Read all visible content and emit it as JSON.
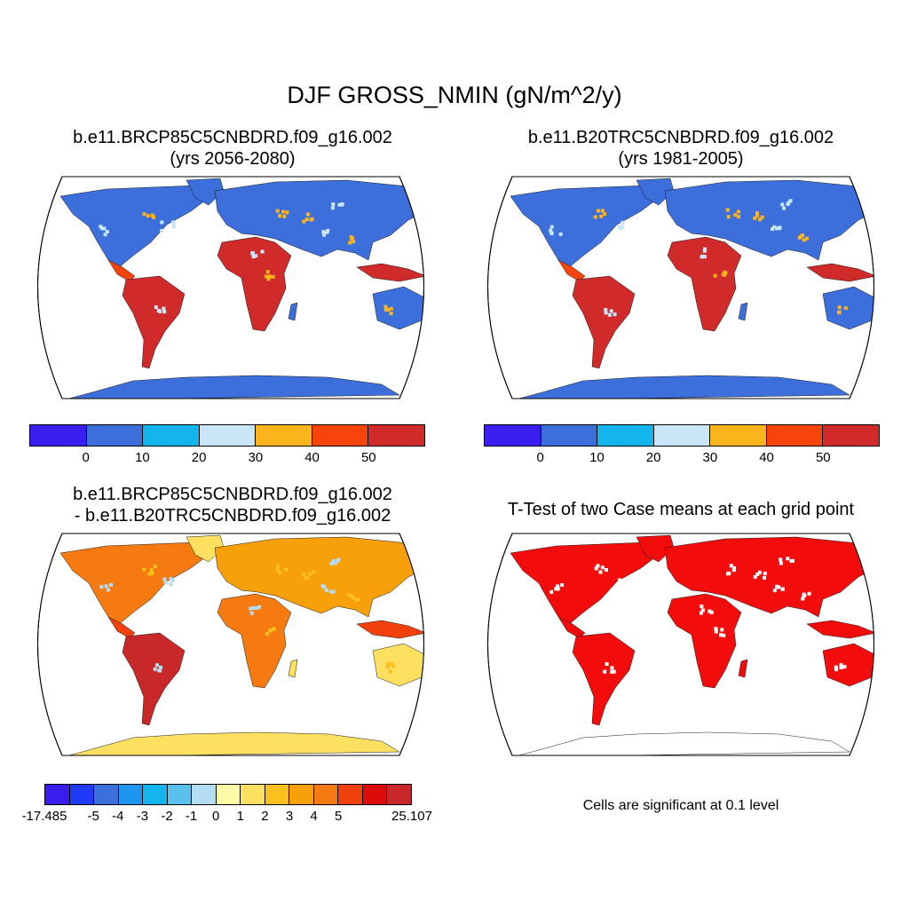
{
  "figure": {
    "title": "DJF GROSS_NMIN (gN/m^2/y)"
  },
  "panels": [
    {
      "title_line1": "b.e11.BRCP85C5CNBDRD.f09_g16.002",
      "title_line2": "(yrs 2056-2080)"
    },
    {
      "title_line1": "b.e11.B20TRC5CNBDRD.f09_g16.002",
      "title_line2": "(yrs 1981-2005)"
    },
    {
      "title_line1": "b.e11.BRCP85C5CNBDRD.f09_g16.002",
      "title_line2": "- b.e11.B20TRC5CNBDRD.f09_g16.002"
    },
    {
      "title_line1": "T-Test of two Case means at each grid point"
    }
  ],
  "colorbar_abs": {
    "colors": [
      "#3a1ef0",
      "#3c6fdc",
      "#14b4ec",
      "#c8e6f6",
      "#fbb41c",
      "#f6440c",
      "#d02a2a"
    ],
    "tick_labels": [
      "0",
      "10",
      "20",
      "30",
      "40",
      "50"
    ]
  },
  "colorbar_diff": {
    "colors": [
      "#3a1ef0",
      "#1e3cf5",
      "#3c6fdc",
      "#1e96f0",
      "#14b4ec",
      "#5ac0ec",
      "#b4dcf2",
      "#fffaa8",
      "#fde060",
      "#fbc01e",
      "#f8a00a",
      "#f67a12",
      "#f2400c",
      "#dc0a0a",
      "#c82828"
    ],
    "tick_labels": [
      "-17.485",
      "-5",
      "-4",
      "-3",
      "-2",
      "-1",
      "0",
      "1",
      "2",
      "3",
      "4",
      "5",
      "25.107"
    ]
  },
  "significance_note": "Cells are significant at 0.1 level",
  "map_colors": {
    "ocean": "#ffffff",
    "outline": "#000000",
    "significant": "#f20c0c"
  }
}
